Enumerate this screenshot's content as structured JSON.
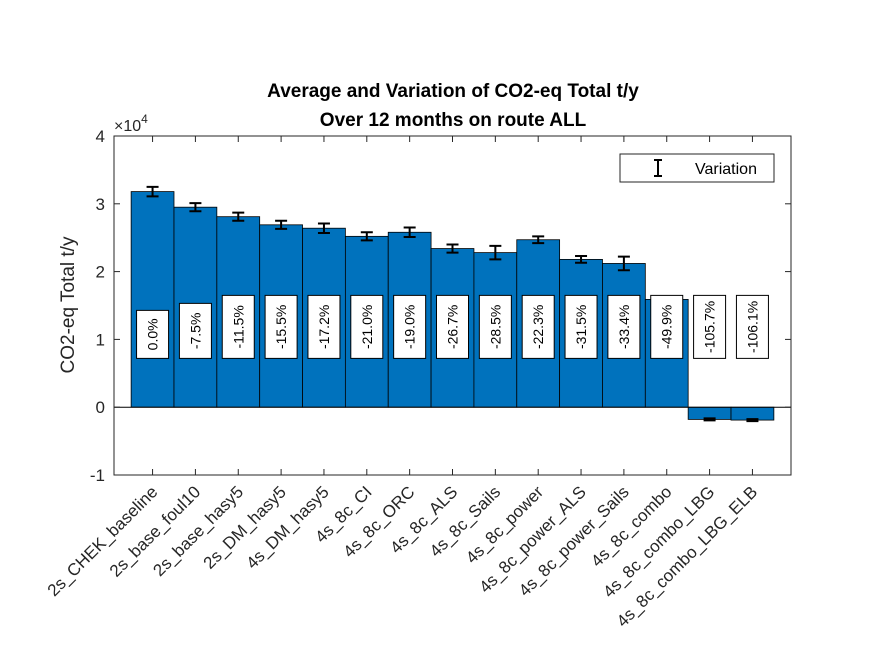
{
  "chart_data": {
    "type": "bar",
    "title_lines": [
      "Average and Variation of CO2-eq Total t/y",
      "Over 12 months on route ALL"
    ],
    "ylabel": "CO2-eq Total t/y",
    "xlabel": "",
    "ylim": [
      -10000,
      40000
    ],
    "yticks": [
      -10000,
      0,
      10000,
      20000,
      30000,
      40000
    ],
    "ytick_labels": [
      "-1",
      "0",
      "1",
      "2",
      "3",
      "4"
    ],
    "y_exponent_base": "×10",
    "y_exponent_power": "4",
    "grid": false,
    "bar_color": "#0072BD",
    "legend": {
      "label": "Variation",
      "placement": "top-right"
    },
    "categories": [
      "2s_CHEK_baseline",
      "2s_base_foul10",
      "2s_base_hasy5",
      "2s_DM_hasy5",
      "4s_DM_hasy5",
      "4s_8c_CI",
      "4s_8c_ORC",
      "4s_8c_ALS",
      "4s_8c_Sails",
      "4s_8c_power",
      "4s_8c_power_ALS",
      "4s_8c_power_Sails",
      "4s_8c_combo",
      "4s_8c_combo_LBG",
      "4s_8c_combo_LBG_ELB"
    ],
    "values": [
      31800,
      29500,
      28100,
      26900,
      26400,
      25200,
      25800,
      23400,
      22800,
      24700,
      21800,
      21200,
      15900,
      -1800,
      -1900
    ],
    "variation": [
      700,
      600,
      600,
      600,
      700,
      600,
      700,
      600,
      1000,
      500,
      500,
      1000,
      200,
      150,
      150
    ],
    "pct_labels": [
      "0.0%",
      "-7.5%",
      "-11.5%",
      "-15.5%",
      "-17.2%",
      "-21.0%",
      "-19.0%",
      "-26.7%",
      "-28.5%",
      "-22.3%",
      "-31.5%",
      "-33.4%",
      "-49.9%",
      "-105.7%",
      "-106.1%"
    ]
  }
}
